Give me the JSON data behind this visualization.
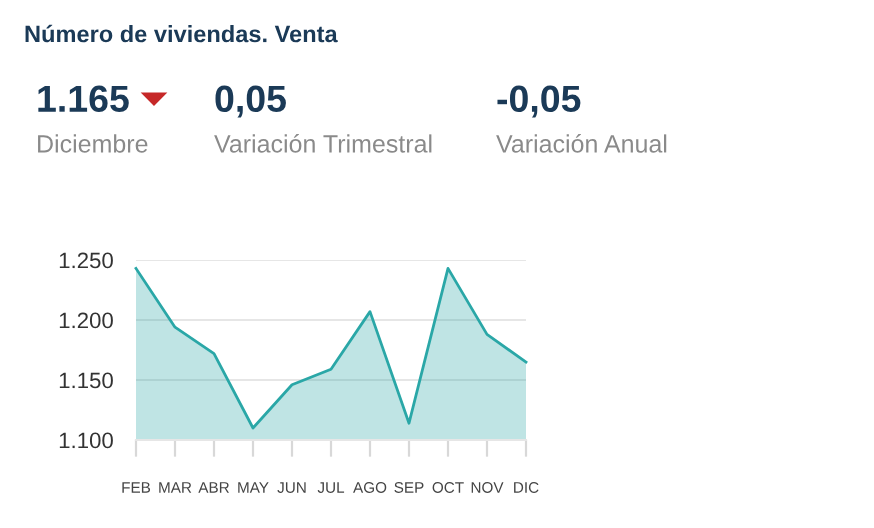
{
  "chart_data": {
    "type": "area",
    "title": "Número de viviendas. Venta",
    "annotations": [
      "1.165",
      "Diciembre",
      "0,05",
      "Variación Trimestral",
      "-0,05",
      "Variación Anual"
    ],
    "categories": [
      "FEB",
      "MAR",
      "ABR",
      "MAY",
      "JUN",
      "JUL",
      "AGO",
      "SEP",
      "OCT",
      "NOV",
      "DIC"
    ],
    "series": [
      {
        "color": "#2aa7a7",
        "values": [
          1243,
          1194,
          1172,
          1110,
          1146,
          1159,
          1207,
          1114,
          1243,
          1188,
          1165
        ]
      }
    ],
    "ylim": [
      1100,
      1250
    ],
    "yticks": [
      {
        "value": 1100,
        "label": "1.100"
      },
      {
        "value": 1150,
        "label": "1.150"
      },
      {
        "value": 1200,
        "label": "1.200"
      },
      {
        "value": 1250,
        "label": "1.250"
      }
    ],
    "grid": "y",
    "legend": false,
    "marker": "none",
    "line_style": "solid"
  }
}
